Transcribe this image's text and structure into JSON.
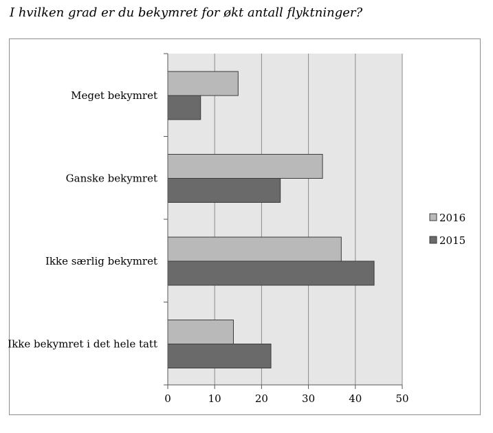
{
  "chart_data": {
    "type": "bar",
    "orientation": "horizontal",
    "title": "I hvilken grad er du bekymret for økt antall flyktninger?",
    "categories": [
      "Meget bekymret",
      "Ganske bekymret",
      "Ikke særlig bekymret",
      "Ikke bekymret i det hele tatt"
    ],
    "series": [
      {
        "name": "2016",
        "values": [
          15,
          33,
          37,
          14
        ],
        "color": "#b9b9b9"
      },
      {
        "name": "2015",
        "values": [
          7,
          24,
          44,
          22
        ],
        "color": "#6a6a6a"
      }
    ],
    "xlim": [
      0,
      50
    ],
    "xticks": [
      0,
      10,
      20,
      30,
      40,
      50
    ],
    "xtick_labels": [
      "0",
      "10",
      "20",
      "30",
      "40",
      "50"
    ],
    "grid": true,
    "plot_background": "#e6e6e6",
    "legend_position": "right"
  }
}
